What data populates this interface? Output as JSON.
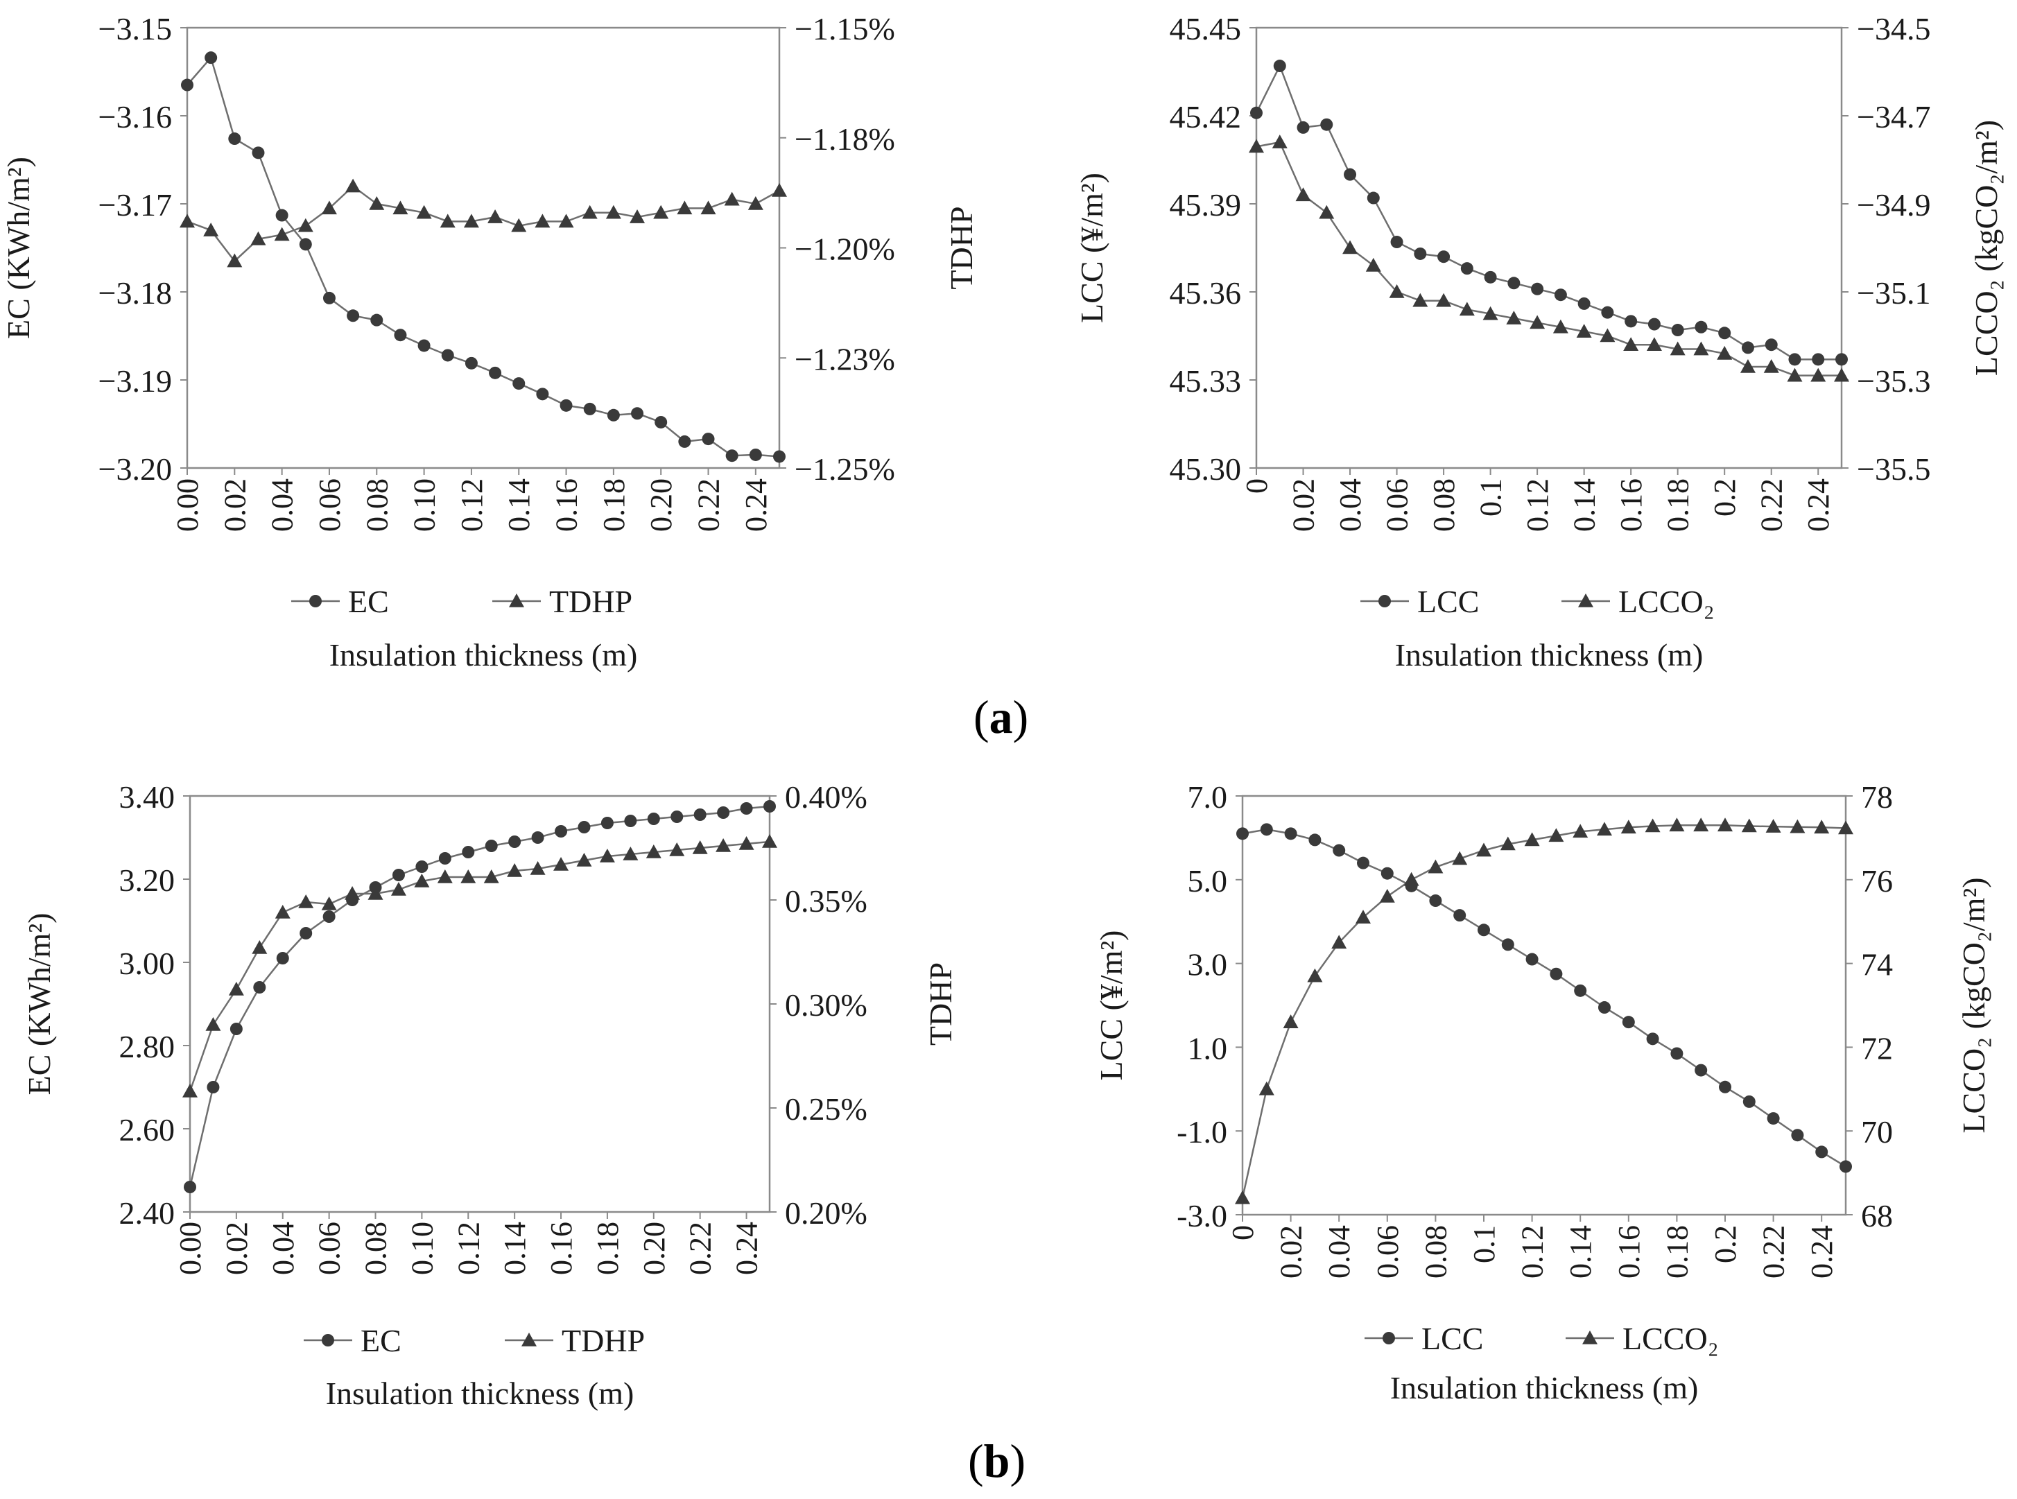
{
  "panel_labels": {
    "a": "a",
    "b": "b"
  },
  "chart_data": [
    {
      "id": "a-left",
      "type": "line",
      "xlabel": "Insulation thickness (m)",
      "x": [
        0.0,
        0.01,
        0.02,
        0.03,
        0.04,
        0.05,
        0.06,
        0.07,
        0.08,
        0.09,
        0.1,
        0.11,
        0.12,
        0.13,
        0.14,
        0.15,
        0.16,
        0.17,
        0.18,
        0.19,
        0.2,
        0.21,
        0.22,
        0.23,
        0.24,
        0.25
      ],
      "xticks": [
        "0.00",
        "0.02",
        "0.04",
        "0.06",
        "0.08",
        "0.10",
        "0.12",
        "0.14",
        "0.16",
        "0.18",
        "0.20",
        "0.22",
        "0.24"
      ],
      "xlim": [
        0,
        0.25
      ],
      "ylabel_left": "EC (KWh/m²)",
      "ylabel_right": "TDHP",
      "ylim_left": [
        -3.2,
        -3.15
      ],
      "yticks_left": [
        "−3.15",
        "−3.16",
        "−3.17",
        "−3.18",
        "−3.19",
        "−3.20"
      ],
      "ylim_right": [
        -1.25,
        -1.15
      ],
      "yticks_right": [
        "−1.15%",
        "−1.18%",
        "−1.20%",
        "−1.23%",
        "−1.25%"
      ],
      "series": [
        {
          "name": "EC",
          "marker": "circle",
          "axis": "left",
          "values": [
            -3.1565,
            -3.1534,
            -3.1626,
            -3.1642,
            -3.1713,
            -3.1746,
            -3.1807,
            -3.1827,
            -3.1832,
            -3.1849,
            -3.1861,
            -3.1872,
            -3.1881,
            -3.1892,
            -3.1904,
            -3.1916,
            -3.1929,
            -3.1933,
            -3.194,
            -3.1938,
            -3.1948,
            -3.197,
            -3.1967,
            -3.1986,
            -3.1985,
            -3.1987
          ]
        },
        {
          "name": "TDHP",
          "marker": "triangle",
          "axis": "right",
          "values": [
            -1.194,
            -1.196,
            -1.203,
            -1.198,
            -1.197,
            -1.195,
            -1.191,
            -1.186,
            -1.19,
            -1.191,
            -1.192,
            -1.194,
            -1.194,
            -1.193,
            -1.195,
            -1.194,
            -1.194,
            -1.192,
            -1.192,
            -1.193,
            -1.192,
            -1.191,
            -1.191,
            -1.189,
            -1.19,
            -1.187
          ]
        }
      ]
    },
    {
      "id": "a-right",
      "type": "line",
      "xlabel": "Insulation thickness (m)",
      "x": [
        0.0,
        0.01,
        0.02,
        0.03,
        0.04,
        0.05,
        0.06,
        0.07,
        0.08,
        0.09,
        0.1,
        0.11,
        0.12,
        0.13,
        0.14,
        0.15,
        0.16,
        0.17,
        0.18,
        0.19,
        0.2,
        0.21,
        0.22,
        0.23,
        0.24,
        0.25
      ],
      "xticks": [
        "0",
        "0.02",
        "0.04",
        "0.06",
        "0.08",
        "0.1",
        "0.12",
        "0.14",
        "0.16",
        "0.18",
        "0.2",
        "0.22",
        "0.24"
      ],
      "xlim": [
        0,
        0.25
      ],
      "ylabel_left": "LCC (¥/m²)",
      "ylabel_right": "LCCO₂ (kgCO₂/m²)",
      "ylim_left": [
        45.3,
        45.45
      ],
      "yticks_left": [
        "45.45",
        "45.42",
        "45.39",
        "45.36",
        "45.33",
        "45.30"
      ],
      "ylim_right": [
        -35.5,
        -34.5
      ],
      "yticks_right": [
        "−34.5",
        "−34.7",
        "−34.9",
        "−35.1",
        "−35.3",
        "−35.5"
      ],
      "series": [
        {
          "name": "LCC",
          "marker": "circle",
          "axis": "left",
          "values": [
            45.421,
            45.437,
            45.416,
            45.417,
            45.4,
            45.392,
            45.377,
            45.373,
            45.372,
            45.368,
            45.365,
            45.363,
            45.361,
            45.359,
            45.356,
            45.353,
            45.35,
            45.349,
            45.347,
            45.348,
            45.346,
            45.341,
            45.342,
            45.337,
            45.337,
            45.337
          ]
        },
        {
          "name": "LCCO₂",
          "marker": "triangle",
          "axis": "right",
          "values": [
            -34.77,
            -34.76,
            -34.88,
            -34.92,
            -35.0,
            -35.04,
            -35.1,
            -35.12,
            -35.12,
            -35.14,
            -35.15,
            -35.16,
            -35.17,
            -35.18,
            -35.19,
            -35.2,
            -35.22,
            -35.22,
            -35.23,
            -35.23,
            -35.24,
            -35.27,
            -35.27,
            -35.29,
            -35.29,
            -35.29
          ]
        }
      ]
    },
    {
      "id": "b-left",
      "type": "line",
      "xlabel": "Insulation thickness (m)",
      "x": [
        0.0,
        0.01,
        0.02,
        0.03,
        0.04,
        0.05,
        0.06,
        0.07,
        0.08,
        0.09,
        0.1,
        0.11,
        0.12,
        0.13,
        0.14,
        0.15,
        0.16,
        0.17,
        0.18,
        0.19,
        0.2,
        0.21,
        0.22,
        0.23,
        0.24,
        0.25
      ],
      "xticks": [
        "0.00",
        "0.02",
        "0.04",
        "0.06",
        "0.08",
        "0.10",
        "0.12",
        "0.14",
        "0.16",
        "0.18",
        "0.20",
        "0.22",
        "0.24"
      ],
      "xlim": [
        0,
        0.25
      ],
      "ylabel_left": "EC (KWh/m²)",
      "ylabel_right": "TDHP",
      "ylim_left": [
        2.4,
        3.4
      ],
      "yticks_left": [
        "3.40",
        "3.20",
        "3.00",
        "2.80",
        "2.60",
        "2.40"
      ],
      "ylim_right": [
        0.2,
        0.4
      ],
      "yticks_right": [
        "0.40%",
        "0.35%",
        "0.30%",
        "0.25%",
        "0.20%"
      ],
      "series": [
        {
          "name": "EC",
          "marker": "circle",
          "axis": "left",
          "values": [
            2.46,
            2.7,
            2.84,
            2.94,
            3.01,
            3.07,
            3.11,
            3.15,
            3.18,
            3.21,
            3.23,
            3.25,
            3.265,
            3.28,
            3.29,
            3.3,
            3.315,
            3.325,
            3.335,
            3.34,
            3.345,
            3.35,
            3.355,
            3.36,
            3.37,
            3.375
          ]
        },
        {
          "name": "TDHP",
          "marker": "triangle",
          "axis": "right",
          "values": [
            0.258,
            0.29,
            0.307,
            0.327,
            0.344,
            0.349,
            0.348,
            0.353,
            0.353,
            0.355,
            0.359,
            0.361,
            0.361,
            0.361,
            0.364,
            0.365,
            0.367,
            0.369,
            0.371,
            0.372,
            0.373,
            0.374,
            0.375,
            0.376,
            0.377,
            0.378
          ]
        }
      ]
    },
    {
      "id": "b-right",
      "type": "line",
      "xlabel": "Insulation thickness (m)",
      "x": [
        0.0,
        0.01,
        0.02,
        0.03,
        0.04,
        0.05,
        0.06,
        0.07,
        0.08,
        0.09,
        0.1,
        0.11,
        0.12,
        0.13,
        0.14,
        0.15,
        0.16,
        0.17,
        0.18,
        0.19,
        0.2,
        0.21,
        0.22,
        0.23,
        0.24,
        0.25
      ],
      "xticks": [
        "0",
        "0.02",
        "0.04",
        "0.06",
        "0.08",
        "0.1",
        "0.12",
        "0.14",
        "0.16",
        "0.18",
        "0.2",
        "0.22",
        "0.24"
      ],
      "xlim": [
        0,
        0.25
      ],
      "ylabel_left": "LCC (¥/m²)",
      "ylabel_right": "LCCO₂ (kgCO₂/m²)",
      "ylim_left": [
        -3.0,
        7.0
      ],
      "yticks_left": [
        "7.0",
        "5.0",
        "3.0",
        "1.0",
        "-1.0",
        "-3.0"
      ],
      "ylim_right": [
        68,
        78
      ],
      "yticks_right": [
        "78",
        "76",
        "74",
        "72",
        "70",
        "68"
      ],
      "series": [
        {
          "name": "LCC",
          "marker": "circle",
          "axis": "left",
          "values": [
            6.1,
            6.2,
            6.1,
            5.95,
            5.7,
            5.4,
            5.15,
            4.85,
            4.5,
            4.15,
            3.8,
            3.45,
            3.1,
            2.75,
            2.35,
            1.95,
            1.6,
            1.2,
            0.85,
            0.45,
            0.05,
            -0.3,
            -0.7,
            -1.1,
            -1.5,
            -1.85
          ]
        },
        {
          "name": "LCCO₂",
          "marker": "triangle",
          "axis": "right",
          "values": [
            68.4,
            71.0,
            72.6,
            73.7,
            74.5,
            75.1,
            75.6,
            76.0,
            76.3,
            76.5,
            76.7,
            76.85,
            76.95,
            77.05,
            77.15,
            77.2,
            77.25,
            77.28,
            77.3,
            77.3,
            77.3,
            77.28,
            77.27,
            77.26,
            77.25,
            77.23
          ]
        }
      ]
    }
  ]
}
